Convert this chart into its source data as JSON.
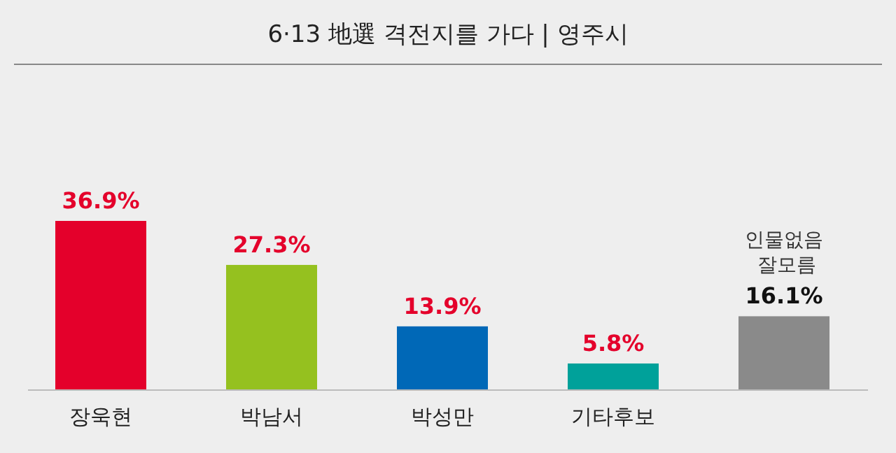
{
  "chart_data": {
    "type": "bar",
    "title": "6·13 地選 격전지를 가다  |  영주시",
    "categories": [
      "장욱현",
      "박남서",
      "박성만",
      "기타후보",
      "인물없음 잘모름"
    ],
    "values": [
      36.9,
      27.3,
      13.9,
      5.8,
      16.1
    ],
    "colors": [
      "#e4002b",
      "#95c11f",
      "#0068b7",
      "#00a19a",
      "#8a8a8a"
    ],
    "value_labels": [
      "36.9%",
      "27.3%",
      "13.9%",
      "5.8%",
      "16.1%"
    ]
  }
}
